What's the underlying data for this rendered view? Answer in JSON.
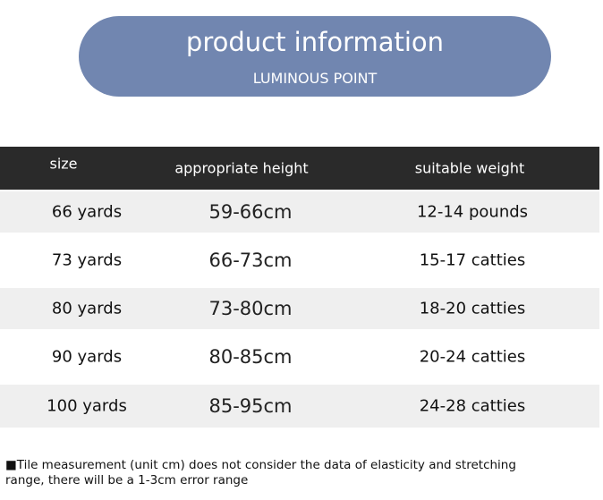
{
  "header": {
    "title": "product information",
    "subtitle": "LUMINOUS POINT"
  },
  "table": {
    "columns": [
      "size",
      "appropriate height",
      "suitable weight"
    ],
    "rows": [
      [
        "66 yards",
        "59-66cm",
        "12-14 pounds"
      ],
      [
        "73 yards",
        "66-73cm",
        "15-17 catties"
      ],
      [
        "80 yards",
        "73-80cm",
        "18-20 catties"
      ],
      [
        "90 yards",
        "80-85cm",
        "20-24 catties"
      ],
      [
        "100 yards",
        "85-95cm",
        "24-28 catties"
      ]
    ]
  },
  "note": "■Tile measurement (unit cm) does not consider the data of elasticity and stretching range, there will be a 1-3cm error range"
}
